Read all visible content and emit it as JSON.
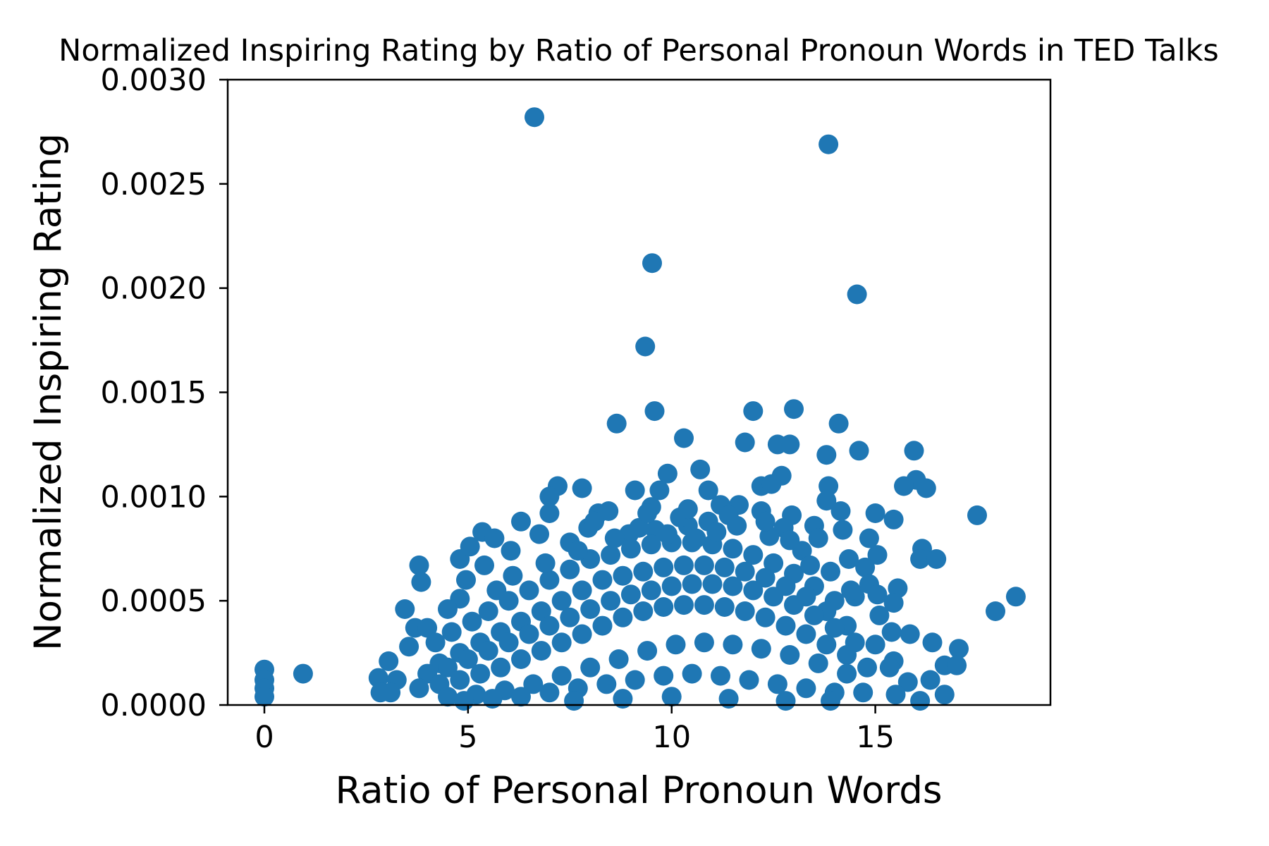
{
  "chart_data": {
    "type": "scatter",
    "title": "Normalized Inspiring Rating by Ratio of Personal Pronoun Words in TED Talks",
    "xlabel": "Ratio of Personal Pronoun Words",
    "ylabel": "Normalized Inspiring Rating",
    "xlim": [
      -0.9,
      19.3
    ],
    "ylim": [
      0,
      0.003
    ],
    "x_ticks": [
      0,
      5,
      10,
      15
    ],
    "x_tick_labels": [
      "0",
      "5",
      "10",
      "15"
    ],
    "y_ticks": [
      0,
      0.0005,
      0.001,
      0.0015,
      0.002,
      0.0025,
      0.003
    ],
    "y_tick_labels": [
      "0.0000",
      "0.0005",
      "0.0010",
      "0.0015",
      "0.0020",
      "0.0025",
      "0.0030"
    ],
    "grid": false,
    "legend": false,
    "marker_color": "#1f77b4",
    "series": [
      {
        "points": [
          [
            6.63,
            0.00282
          ],
          [
            13.85,
            0.00269
          ],
          [
            9.52,
            0.00212
          ],
          [
            14.55,
            0.00197
          ],
          [
            9.35,
            0.00172
          ],
          [
            9.58,
            0.00141
          ],
          [
            12.0,
            0.00141
          ],
          [
            13.0,
            0.00142
          ],
          [
            8.65,
            0.00135
          ],
          [
            14.1,
            0.00135
          ],
          [
            10.3,
            0.00128
          ],
          [
            11.8,
            0.00126
          ],
          [
            12.6,
            0.00125
          ],
          [
            12.9,
            0.00125
          ],
          [
            14.6,
            0.00122
          ],
          [
            15.95,
            0.00122
          ],
          [
            13.8,
            0.0012
          ],
          [
            10.7,
            0.00113
          ],
          [
            9.9,
            0.00111
          ],
          [
            12.7,
            0.0011
          ],
          [
            16.0,
            0.00108
          ],
          [
            15.7,
            0.00105
          ],
          [
            16.25,
            0.00104
          ],
          [
            7.2,
            0.00105
          ],
          [
            7.8,
            0.00104
          ],
          [
            9.1,
            0.00103
          ],
          [
            9.7,
            0.00103
          ],
          [
            10.9,
            0.00103
          ],
          [
            7.0,
            0.001
          ],
          [
            13.85,
            0.00105
          ],
          [
            12.2,
            0.00105
          ],
          [
            12.45,
            0.00106
          ],
          [
            17.5,
            0.00091
          ],
          [
            15.0,
            0.00092
          ],
          [
            15.45,
            0.00089
          ],
          [
            6.3,
            0.00088
          ],
          [
            7.0,
            0.00092
          ],
          [
            8.2,
            0.00092
          ],
          [
            8.45,
            0.00093
          ],
          [
            9.5,
            0.00095
          ],
          [
            11.2,
            0.00096
          ],
          [
            11.65,
            0.00096
          ],
          [
            12.2,
            0.00093
          ],
          [
            12.95,
            0.00091
          ],
          [
            13.8,
            0.00098
          ],
          [
            14.15,
            0.00093
          ],
          [
            14.2,
            0.00084
          ],
          [
            13.5,
            0.00086
          ],
          [
            5.35,
            0.00083
          ],
          [
            5.65,
            0.0008
          ],
          [
            6.05,
            0.00074
          ],
          [
            6.75,
            0.00082
          ],
          [
            7.5,
            0.00078
          ],
          [
            7.95,
            0.00085
          ],
          [
            8.95,
            0.00082
          ],
          [
            9.6,
            0.00084
          ],
          [
            10.4,
            0.00086
          ],
          [
            12.75,
            0.00085
          ],
          [
            13.6,
            0.0008
          ],
          [
            14.85,
            0.0008
          ],
          [
            15.05,
            0.00072
          ],
          [
            16.15,
            0.00075
          ],
          [
            16.1,
            0.0007
          ],
          [
            16.5,
            0.0007
          ],
          [
            4.8,
            0.0007
          ],
          [
            5.05,
            0.00076
          ],
          [
            3.8,
            0.00067
          ],
          [
            5.4,
            0.00067
          ],
          [
            3.85,
            0.00059
          ],
          [
            4.95,
            0.0006
          ],
          [
            14.75,
            0.00066
          ],
          [
            14.35,
            0.0007
          ],
          [
            14.85,
            0.00058
          ],
          [
            15.55,
            0.00056
          ],
          [
            3.45,
            0.00046
          ],
          [
            4.8,
            0.00051
          ],
          [
            4.5,
            0.00046
          ],
          [
            14.5,
            0.00052
          ],
          [
            15.05,
            0.00053
          ],
          [
            15.45,
            0.00049
          ],
          [
            15.1,
            0.00043
          ],
          [
            18.45,
            0.00052
          ],
          [
            17.95,
            0.00045
          ],
          [
            3.7,
            0.00037
          ],
          [
            4.0,
            0.00037
          ],
          [
            3.55,
            0.00028
          ],
          [
            15.85,
            0.00034
          ],
          [
            15.4,
            0.00035
          ],
          [
            16.4,
            0.0003
          ],
          [
            17.05,
            0.00027
          ],
          [
            15.0,
            0.00029
          ],
          [
            3.05,
            0.00021
          ],
          [
            2.8,
            0.00013
          ],
          [
            3.25,
            0.00012
          ],
          [
            2.85,
            6e-05
          ],
          [
            3.1,
            6e-05
          ],
          [
            15.45,
            0.00021
          ],
          [
            15.35,
            0.00018
          ],
          [
            16.7,
            0.00019
          ],
          [
            17.0,
            0.00019
          ],
          [
            16.35,
            0.00012
          ],
          [
            15.8,
            0.00011
          ],
          [
            14.7,
            6e-05
          ],
          [
            15.5,
            5e-05
          ],
          [
            16.7,
            5e-05
          ],
          [
            16.1,
            2e-05
          ],
          [
            0.0,
            0.00017
          ],
          [
            0.0,
            0.00012
          ],
          [
            0.0,
            8e-05
          ],
          [
            0.0,
            4e-05
          ],
          [
            0.95,
            0.00015
          ],
          [
            4.2,
            0.0003
          ],
          [
            4.6,
            0.00035
          ],
          [
            5.1,
            0.0004
          ],
          [
            5.5,
            0.00045
          ],
          [
            6.0,
            0.0005
          ],
          [
            6.5,
            0.00055
          ],
          [
            7.0,
            0.0006
          ],
          [
            7.5,
            0.00065
          ],
          [
            8.0,
            0.0007
          ],
          [
            8.5,
            0.00072
          ],
          [
            9.0,
            0.00075
          ],
          [
            9.5,
            0.00077
          ],
          [
            10.0,
            0.00078
          ],
          [
            10.5,
            0.00078
          ],
          [
            11.0,
            0.00077
          ],
          [
            11.5,
            0.00075
          ],
          [
            12.0,
            0.00072
          ],
          [
            12.5,
            0.00068
          ],
          [
            13.0,
            0.00063
          ],
          [
            13.5,
            0.00057
          ],
          [
            14.0,
            0.0005
          ],
          [
            4.3,
            0.0002
          ],
          [
            4.8,
            0.00025
          ],
          [
            5.3,
            0.0003
          ],
          [
            5.8,
            0.00035
          ],
          [
            6.3,
            0.0004
          ],
          [
            6.8,
            0.00045
          ],
          [
            7.3,
            0.0005
          ],
          [
            7.8,
            0.00055
          ],
          [
            8.3,
            0.0006
          ],
          [
            8.8,
            0.00062
          ],
          [
            9.3,
            0.00064
          ],
          [
            9.8,
            0.00066
          ],
          [
            10.3,
            0.00067
          ],
          [
            10.8,
            0.00067
          ],
          [
            11.3,
            0.00066
          ],
          [
            11.8,
            0.00064
          ],
          [
            12.3,
            0.00061
          ],
          [
            12.8,
            0.00057
          ],
          [
            13.3,
            0.00052
          ],
          [
            13.8,
            0.00045
          ],
          [
            14.3,
            0.00038
          ],
          [
            4.0,
            0.00015
          ],
          [
            4.5,
            0.00018
          ],
          [
            5.0,
            0.00022
          ],
          [
            5.5,
            0.00026
          ],
          [
            6.0,
            0.0003
          ],
          [
            6.5,
            0.00034
          ],
          [
            7.0,
            0.00038
          ],
          [
            7.5,
            0.00042
          ],
          [
            8.0,
            0.00046
          ],
          [
            8.5,
            0.0005
          ],
          [
            9.0,
            0.00053
          ],
          [
            9.5,
            0.00055
          ],
          [
            10.0,
            0.00057
          ],
          [
            10.5,
            0.00058
          ],
          [
            11.0,
            0.00058
          ],
          [
            11.5,
            0.00057
          ],
          [
            12.0,
            0.00055
          ],
          [
            12.5,
            0.00052
          ],
          [
            13.0,
            0.00048
          ],
          [
            13.5,
            0.00043
          ],
          [
            14.0,
            0.00037
          ],
          [
            14.5,
            0.0003
          ],
          [
            3.8,
            8e-05
          ],
          [
            4.3,
            0.0001
          ],
          [
            4.8,
            0.00012
          ],
          [
            5.3,
            0.00015
          ],
          [
            5.8,
            0.00018
          ],
          [
            6.3,
            0.00022
          ],
          [
            6.8,
            0.00026
          ],
          [
            7.3,
            0.0003
          ],
          [
            7.8,
            0.00034
          ],
          [
            8.3,
            0.00038
          ],
          [
            8.8,
            0.00042
          ],
          [
            9.3,
            0.00045
          ],
          [
            9.8,
            0.00047
          ],
          [
            10.3,
            0.00048
          ],
          [
            10.8,
            0.00048
          ],
          [
            11.3,
            0.00047
          ],
          [
            11.8,
            0.00045
          ],
          [
            12.3,
            0.00042
          ],
          [
            12.8,
            0.00038
          ],
          [
            13.3,
            0.00034
          ],
          [
            13.8,
            0.00029
          ],
          [
            14.3,
            0.00024
          ],
          [
            14.8,
            0.00018
          ],
          [
            4.5,
            4e-05
          ],
          [
            5.2,
            5e-05
          ],
          [
            5.9,
            7e-05
          ],
          [
            6.6,
            0.0001
          ],
          [
            7.3,
            0.00014
          ],
          [
            8.0,
            0.00018
          ],
          [
            8.7,
            0.00022
          ],
          [
            9.4,
            0.00026
          ],
          [
            10.1,
            0.00029
          ],
          [
            10.8,
            0.0003
          ],
          [
            11.5,
            0.00029
          ],
          [
            12.2,
            0.00027
          ],
          [
            12.9,
            0.00024
          ],
          [
            13.6,
            0.0002
          ],
          [
            14.3,
            0.00015
          ],
          [
            4.9,
            2e-05
          ],
          [
            5.6,
            3e-05
          ],
          [
            6.3,
            4e-05
          ],
          [
            7.0,
            6e-05
          ],
          [
            7.7,
            8e-05
          ],
          [
            8.4,
            0.0001
          ],
          [
            9.1,
            0.00012
          ],
          [
            9.8,
            0.00014
          ],
          [
            10.5,
            0.00015
          ],
          [
            11.2,
            0.00014
          ],
          [
            11.9,
            0.00012
          ],
          [
            12.6,
            0.0001
          ],
          [
            13.3,
            8e-05
          ],
          [
            14.0,
            6e-05
          ],
          [
            7.6,
            2e-05
          ],
          [
            8.8,
            3e-05
          ],
          [
            10.0,
            4e-05
          ],
          [
            11.4,
            3e-05
          ],
          [
            12.8,
            2e-05
          ],
          [
            13.9,
            2e-05
          ],
          [
            6.1,
            0.00062
          ],
          [
            6.9,
            0.00068
          ],
          [
            7.7,
            0.00074
          ],
          [
            8.6,
            0.0008
          ],
          [
            9.2,
            0.00085
          ],
          [
            10.2,
            0.0009
          ],
          [
            10.9,
            0.00088
          ],
          [
            11.6,
            0.00086
          ],
          [
            12.4,
            0.00081
          ],
          [
            13.2,
            0.00074
          ],
          [
            13.9,
            0.00064
          ],
          [
            14.4,
            0.00055
          ],
          [
            5.7,
            0.00055
          ],
          [
            9.9,
            0.00082
          ],
          [
            10.6,
            0.0008
          ],
          [
            11.1,
            0.00083
          ],
          [
            8.1,
            0.00088
          ],
          [
            9.4,
            0.00092
          ],
          [
            10.4,
            0.00094
          ],
          [
            11.4,
            0.00091
          ],
          [
            12.3,
            0.00088
          ],
          [
            12.9,
            0.00079
          ],
          [
            13.4,
            0.00067
          ]
        ]
      }
    ]
  }
}
